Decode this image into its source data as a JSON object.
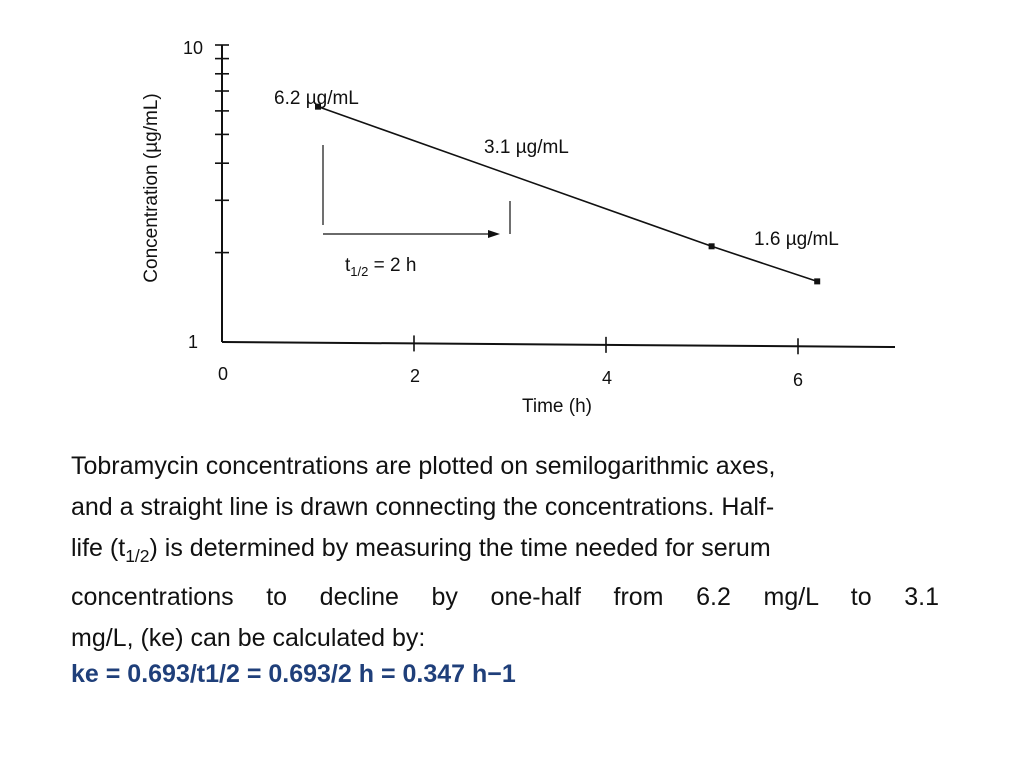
{
  "chart_data": {
    "type": "line",
    "scale": {
      "x": "linear",
      "y": "log"
    },
    "xlabel": "Time (h)",
    "ylabel": "Concentration (µg/mL)",
    "xlim": [
      0,
      7
    ],
    "ylim": [
      1,
      10
    ],
    "x_ticks": [
      "0",
      "2",
      "4",
      "6"
    ],
    "y_ticks": [
      "1",
      "10"
    ],
    "series": [
      {
        "x": [
          1,
          5.1,
          6.2
        ],
        "y": [
          6.2,
          2.1,
          1.6
        ]
      }
    ],
    "annotations": {
      "p1": "6.2 µg/mL",
      "p2": "3.1 µg/mL",
      "p3": "1.6 µg/mL",
      "half_life_t": "t",
      "half_life_sub": "1/2",
      "half_life_rest": " = 2 h"
    }
  },
  "caption": {
    "line1": "Tobramycin concentrations are plotted on semilogarithmic axes,",
    "line2": "and a straight line is drawn connecting the concentrations. Half-",
    "line3_pre": "life (t",
    "line3_sub": "1/2",
    "line3_post": ") is determined by measuring the time needed for serum",
    "line4": "concentrations to decline by one-half from 6.2 mg/L to 3.1",
    "line5": "mg/L, (ke) can be calculated by:"
  },
  "formula": "ke = 0.693/t1/2 = 0.693/2 h = 0.347 h−1"
}
